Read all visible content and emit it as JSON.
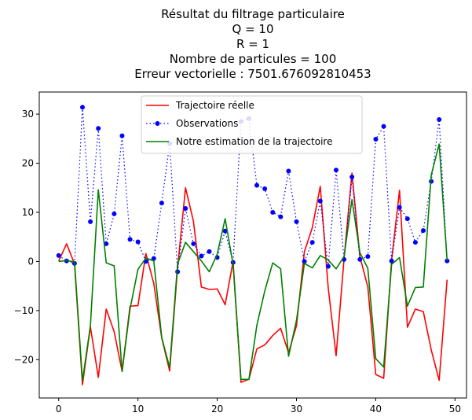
{
  "chart_data": {
    "type": "line",
    "title_lines": [
      "Résultat du filtrage particulaire",
      "Q = 10",
      "R = 1",
      "Nombre de particules = 100",
      "Erreur vectorielle : 7501.676092810453"
    ],
    "xlabel": "",
    "ylabel": "",
    "xlim": [
      -2.45,
      51.45
    ],
    "ylim": [
      -27.8,
      34.5
    ],
    "xticks": [
      0,
      10,
      20,
      30,
      40,
      50
    ],
    "yticks": [
      -20,
      -10,
      0,
      10,
      20,
      30
    ],
    "xtick_labels": [
      "0",
      "10",
      "20",
      "30",
      "40",
      "50"
    ],
    "ytick_labels": [
      "−20",
      "−10",
      "0",
      "10",
      "20",
      "30"
    ],
    "grid": false,
    "legend_position": "upper center",
    "x": [
      0,
      1,
      2,
      3,
      4,
      5,
      6,
      7,
      8,
      9,
      10,
      11,
      12,
      13,
      14,
      15,
      16,
      17,
      18,
      19,
      20,
      21,
      22,
      23,
      24,
      25,
      26,
      27,
      28,
      29,
      30,
      31,
      32,
      33,
      34,
      35,
      36,
      37,
      38,
      39,
      40,
      41,
      42,
      43,
      44,
      45,
      46,
      47,
      48,
      49
    ],
    "series": [
      {
        "name": "Trajectoire réelle",
        "color": "#ff0000",
        "style": "solid",
        "values": [
          0.1,
          3.6,
          -0.5,
          -25.1,
          -13.3,
          -23.6,
          -9.7,
          -14.3,
          -22.4,
          -9.1,
          -9.0,
          1.6,
          -4.5,
          -15.6,
          -22.3,
          -1.3,
          15.0,
          8.2,
          -5.2,
          -5.7,
          -5.6,
          -8.8,
          0.0,
          -24.6,
          -24.0,
          -17.8,
          -17.0,
          -15.1,
          -13.6,
          -18.6,
          -13.1,
          2.0,
          6.9,
          15.3,
          -5.3,
          -19.2,
          0.5,
          18.0,
          1.0,
          -5.2,
          -23.0,
          -23.8,
          0.3,
          14.5,
          -13.4,
          -9.7,
          -10.2,
          -18.0,
          -24.2,
          -3.7
        ]
      },
      {
        "name": "Observations",
        "color": "#0000ff",
        "style": "dotted-markers",
        "values": [
          1.2,
          0.1,
          -0.4,
          31.4,
          8.1,
          27.1,
          3.6,
          9.7,
          25.6,
          4.5,
          4.0,
          0.0,
          0.6,
          11.9,
          24.0,
          -2.1,
          10.8,
          3.6,
          1.1,
          2.0,
          0.8,
          6.2,
          -0.2,
          28.5,
          29.1,
          15.5,
          14.8,
          10.0,
          9.1,
          18.4,
          8.1,
          0.0,
          3.9,
          12.3,
          -1.0,
          18.6,
          0.4,
          17.2,
          0.4,
          1.0,
          24.9,
          27.5,
          0.1,
          11.0,
          8.7,
          3.9,
          6.3,
          16.3,
          28.9,
          0.1
        ]
      },
      {
        "name": "Notre estimation de la trajectoire",
        "color": "#008000",
        "style": "solid",
        "values": [
          0.0,
          0.2,
          -0.1,
          -24.3,
          -13.1,
          14.6,
          -0.3,
          -0.9,
          -22.4,
          -9.7,
          -1.6,
          0.7,
          0.1,
          -15.5,
          -21.6,
          -0.5,
          3.9,
          2.0,
          0.1,
          -2.1,
          1.5,
          8.7,
          -0.6,
          -24.0,
          -24.0,
          -13.0,
          -6.0,
          -0.3,
          -1.5,
          -19.3,
          -12.0,
          -0.4,
          -1.3,
          1.2,
          0.3,
          -1.5,
          1.0,
          12.6,
          1.8,
          -1.4,
          -19.8,
          -21.5,
          -0.6,
          0.8,
          -9.1,
          -5.3,
          -5.2,
          17.6,
          23.9,
          0.2
        ]
      }
    ]
  }
}
